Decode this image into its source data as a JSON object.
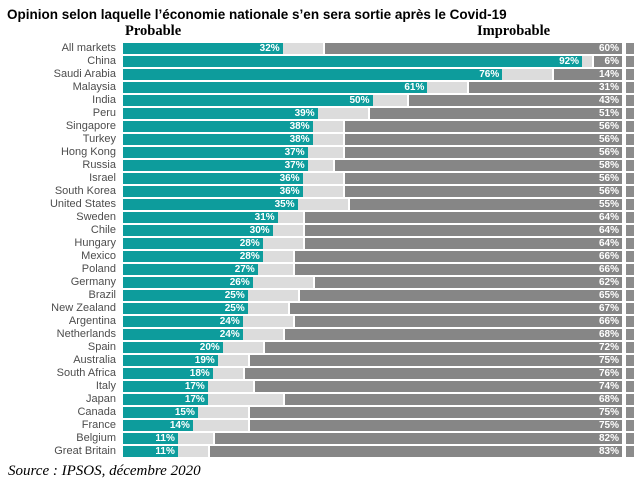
{
  "title": "Opinion selon laquelle l’économie nationale s’en sera sortie après le Covid-19",
  "legend": {
    "probable": "Probable",
    "improbable": "Improbable"
  },
  "source": "Source : IPSOS, décembre 2020",
  "colors": {
    "probable": "#0d9c9c",
    "neutral": "#dcdcdc",
    "improbable": "#868686",
    "edge_cap": "#8c8c8c",
    "label_text": "#4d4d4d",
    "value_text": "#ffffff"
  },
  "chart_data": {
    "type": "bar",
    "orientation": "horizontal-stacked",
    "unit": "%",
    "title": "Opinion selon laquelle l’économie nationale s’en sera sortie après le Covid-19",
    "note": "Middle light-gray segment is the unlabeled remainder (100 - Probable - Improbable)",
    "categories": [
      "All markets",
      "China",
      "Saudi Arabia",
      "Malaysia",
      "India",
      "Peru",
      "Singapore",
      "Turkey",
      "Hong Kong",
      "Russia",
      "Israel",
      "South Korea",
      "United States",
      "Sweden",
      "Chile",
      "Hungary",
      "Mexico",
      "Poland",
      "Germany",
      "Brazil",
      "New Zealand",
      "Argentina",
      "Netherlands",
      "Spain",
      "Australia",
      "South Africa",
      "Italy",
      "Japan",
      "Canada",
      "France",
      "Belgium",
      "Great Britain"
    ],
    "series": [
      {
        "name": "Probable",
        "values": [
          32,
          92,
          76,
          61,
          50,
          39,
          38,
          38,
          37,
          37,
          36,
          36,
          35,
          31,
          30,
          28,
          28,
          27,
          26,
          25,
          25,
          24,
          24,
          20,
          19,
          18,
          17,
          17,
          15,
          14,
          11,
          11
        ]
      },
      {
        "name": "Improbable",
        "values": [
          60,
          6,
          14,
          31,
          43,
          51,
          56,
          56,
          56,
          58,
          56,
          56,
          55,
          64,
          64,
          64,
          66,
          66,
          62,
          65,
          67,
          66,
          68,
          72,
          75,
          76,
          74,
          68,
          75,
          75,
          82,
          83
        ]
      }
    ]
  }
}
